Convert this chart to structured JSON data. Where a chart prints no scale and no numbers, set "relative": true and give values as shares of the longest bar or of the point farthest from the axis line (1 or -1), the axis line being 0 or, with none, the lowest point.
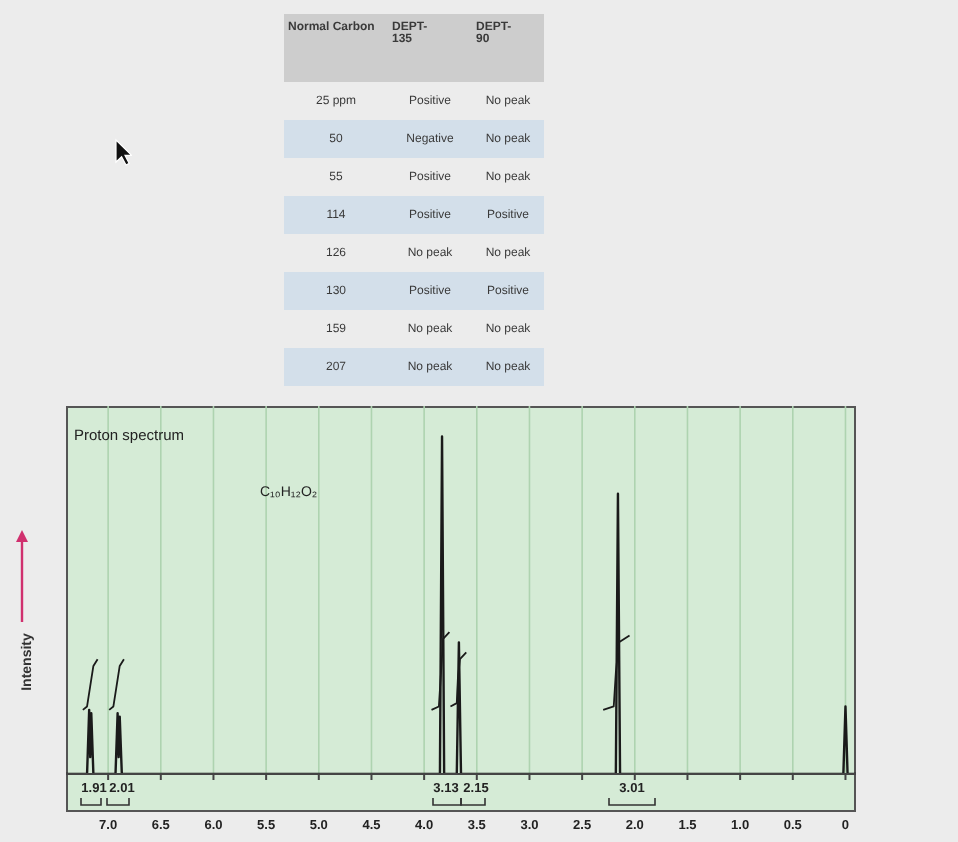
{
  "chart_data": [
    {
      "type": "other",
      "categories": [
        "Normal Carbon",
        "DEPT-135",
        "DEPT-90"
      ],
      "cell_labels": [
        [
          "25 ppm",
          "Positive",
          "No peak"
        ],
        [
          "50",
          "Negative",
          "No peak"
        ],
        [
          "55",
          "Positive",
          "No peak"
        ],
        [
          "114",
          "Positive",
          "Positive"
        ],
        [
          "126",
          "No peak",
          "No peak"
        ],
        [
          "130",
          "Positive",
          "Positive"
        ],
        [
          "159",
          "No peak",
          "No peak"
        ],
        [
          "207",
          "No peak",
          "No peak"
        ]
      ]
    },
    {
      "type": "line",
      "title": "Proton spectrum",
      "ylabel": "Intensity",
      "annotations": [
        "C₁₀H₁₂O₂",
        "1.91",
        "2.01",
        "3.13",
        "2.15",
        "3.01"
      ],
      "relative": true,
      "xlim": [
        7.4,
        -0.1
      ],
      "xticks": [
        {
          "value": 7,
          "label": "7.0"
        },
        6.5,
        {
          "value": 6,
          "label": "6.0"
        },
        5.5,
        {
          "value": 5,
          "label": "5.0"
        },
        4.5,
        {
          "value": 4,
          "label": "4.0"
        },
        3.5,
        {
          "value": 3,
          "label": "3.0"
        },
        2.5,
        {
          "value": 2,
          "label": "2.0"
        },
        1.5,
        {
          "value": 1,
          "label": "1.0"
        },
        0.5,
        0
      ],
      "grid": "x",
      "marker": "none",
      "line_style": "solid",
      "series": [
        {
          "color": "#1a1a1a",
          "x": [
            7.4,
            7.2,
            7.18,
            7.17,
            7.16,
            7.14,
            6.93,
            6.91,
            6.9,
            6.89,
            6.87,
            3.85,
            3.83,
            3.81,
            3.69,
            3.67,
            3.65,
            2.18,
            2.16,
            2.14,
            0.02,
            0,
            -0.02,
            -0.1
          ],
          "values": [
            0,
            0,
            0.19,
            0.05,
            0.18,
            0,
            0,
            0.18,
            0.05,
            0.17,
            0,
            0,
            1,
            0,
            0,
            0.39,
            0,
            0,
            0.83,
            0,
            0,
            0.2,
            0,
            0
          ]
        },
        {
          "color": "#1a1a1a",
          "x": [
            7.24,
            7.2,
            7.17,
            7.14,
            7.1
          ],
          "values": [
            0.19,
            0.2,
            0.26,
            0.32,
            0.34
          ]
        },
        {
          "color": "#1a1a1a",
          "x": [
            6.99,
            6.95,
            6.92,
            6.89,
            6.85
          ],
          "values": [
            0.19,
            0.2,
            0.26,
            0.32,
            0.34
          ]
        },
        {
          "color": "#1a1a1a",
          "x": [
            3.93,
            3.86,
            3.84,
            3.82,
            3.76
          ],
          "values": [
            0.19,
            0.2,
            0.3,
            0.4,
            0.42
          ]
        },
        {
          "color": "#1a1a1a",
          "x": [
            3.75,
            3.69,
            3.68,
            3.66,
            3.6
          ],
          "values": [
            0.2,
            0.21,
            0.28,
            0.34,
            0.36
          ]
        },
        {
          "color": "#1a1a1a",
          "x": [
            2.3,
            2.2,
            2.18,
            2.15,
            2.05
          ],
          "values": [
            0.19,
            0.2,
            0.3,
            0.39,
            0.41
          ]
        }
      ]
    }
  ]
}
